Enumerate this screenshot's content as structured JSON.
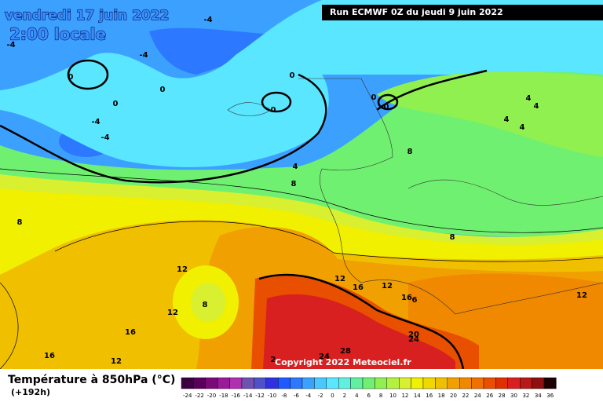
{
  "map": {
    "date": "vendredi 17 juin 2022",
    "time": "2:00 locale",
    "run": "Run ECMWF 0Z du jeudi 9 juin 2022",
    "copyright": "Copyright 2022 Meteociel.fr",
    "contour_labels": [
      "-4",
      "-4",
      "-4",
      "0",
      "0",
      "0",
      "0",
      "0",
      "0",
      "0",
      "-4",
      "-4",
      "4",
      "4",
      "4",
      "4",
      "8",
      "4",
      "8",
      "8",
      "8",
      "12",
      "12",
      "16",
      "12",
      "8",
      "12",
      "16",
      "6",
      "12",
      "16",
      "20",
      "24",
      "28",
      "24",
      "16",
      "12",
      "2"
    ]
  },
  "legend": {
    "title": "Température à 850hPa (°C)",
    "subtitle": "(+192h)",
    "labels": [
      "-24",
      "-22",
      "-20",
      "-18",
      "-16",
      "-14",
      "-12",
      "-10",
      "-8",
      "-6",
      "-4",
      "-2",
      "0",
      "2",
      "4",
      "6",
      "8",
      "10",
      "12",
      "14",
      "16",
      "18",
      "20",
      "22",
      "24",
      "26",
      "28",
      "30",
      "32",
      "34",
      "36"
    ],
    "colors": [
      "#3c0040",
      "#5a005a",
      "#7a0a7a",
      "#9a1a9a",
      "#b030b0",
      "#7050b0",
      "#5050c8",
      "#3030e0",
      "#1e5aff",
      "#2c78ff",
      "#3ca0ff",
      "#48c8ff",
      "#5ae6ff",
      "#60f0e0",
      "#60f0a0",
      "#70f070",
      "#90f050",
      "#b4f040",
      "#d8f030",
      "#f0f000",
      "#f0d800",
      "#f0c000",
      "#f0a000",
      "#f08800",
      "#f07000",
      "#e85000",
      "#e03000",
      "#d82020",
      "#b81818",
      "#901010",
      "#200000"
    ]
  }
}
